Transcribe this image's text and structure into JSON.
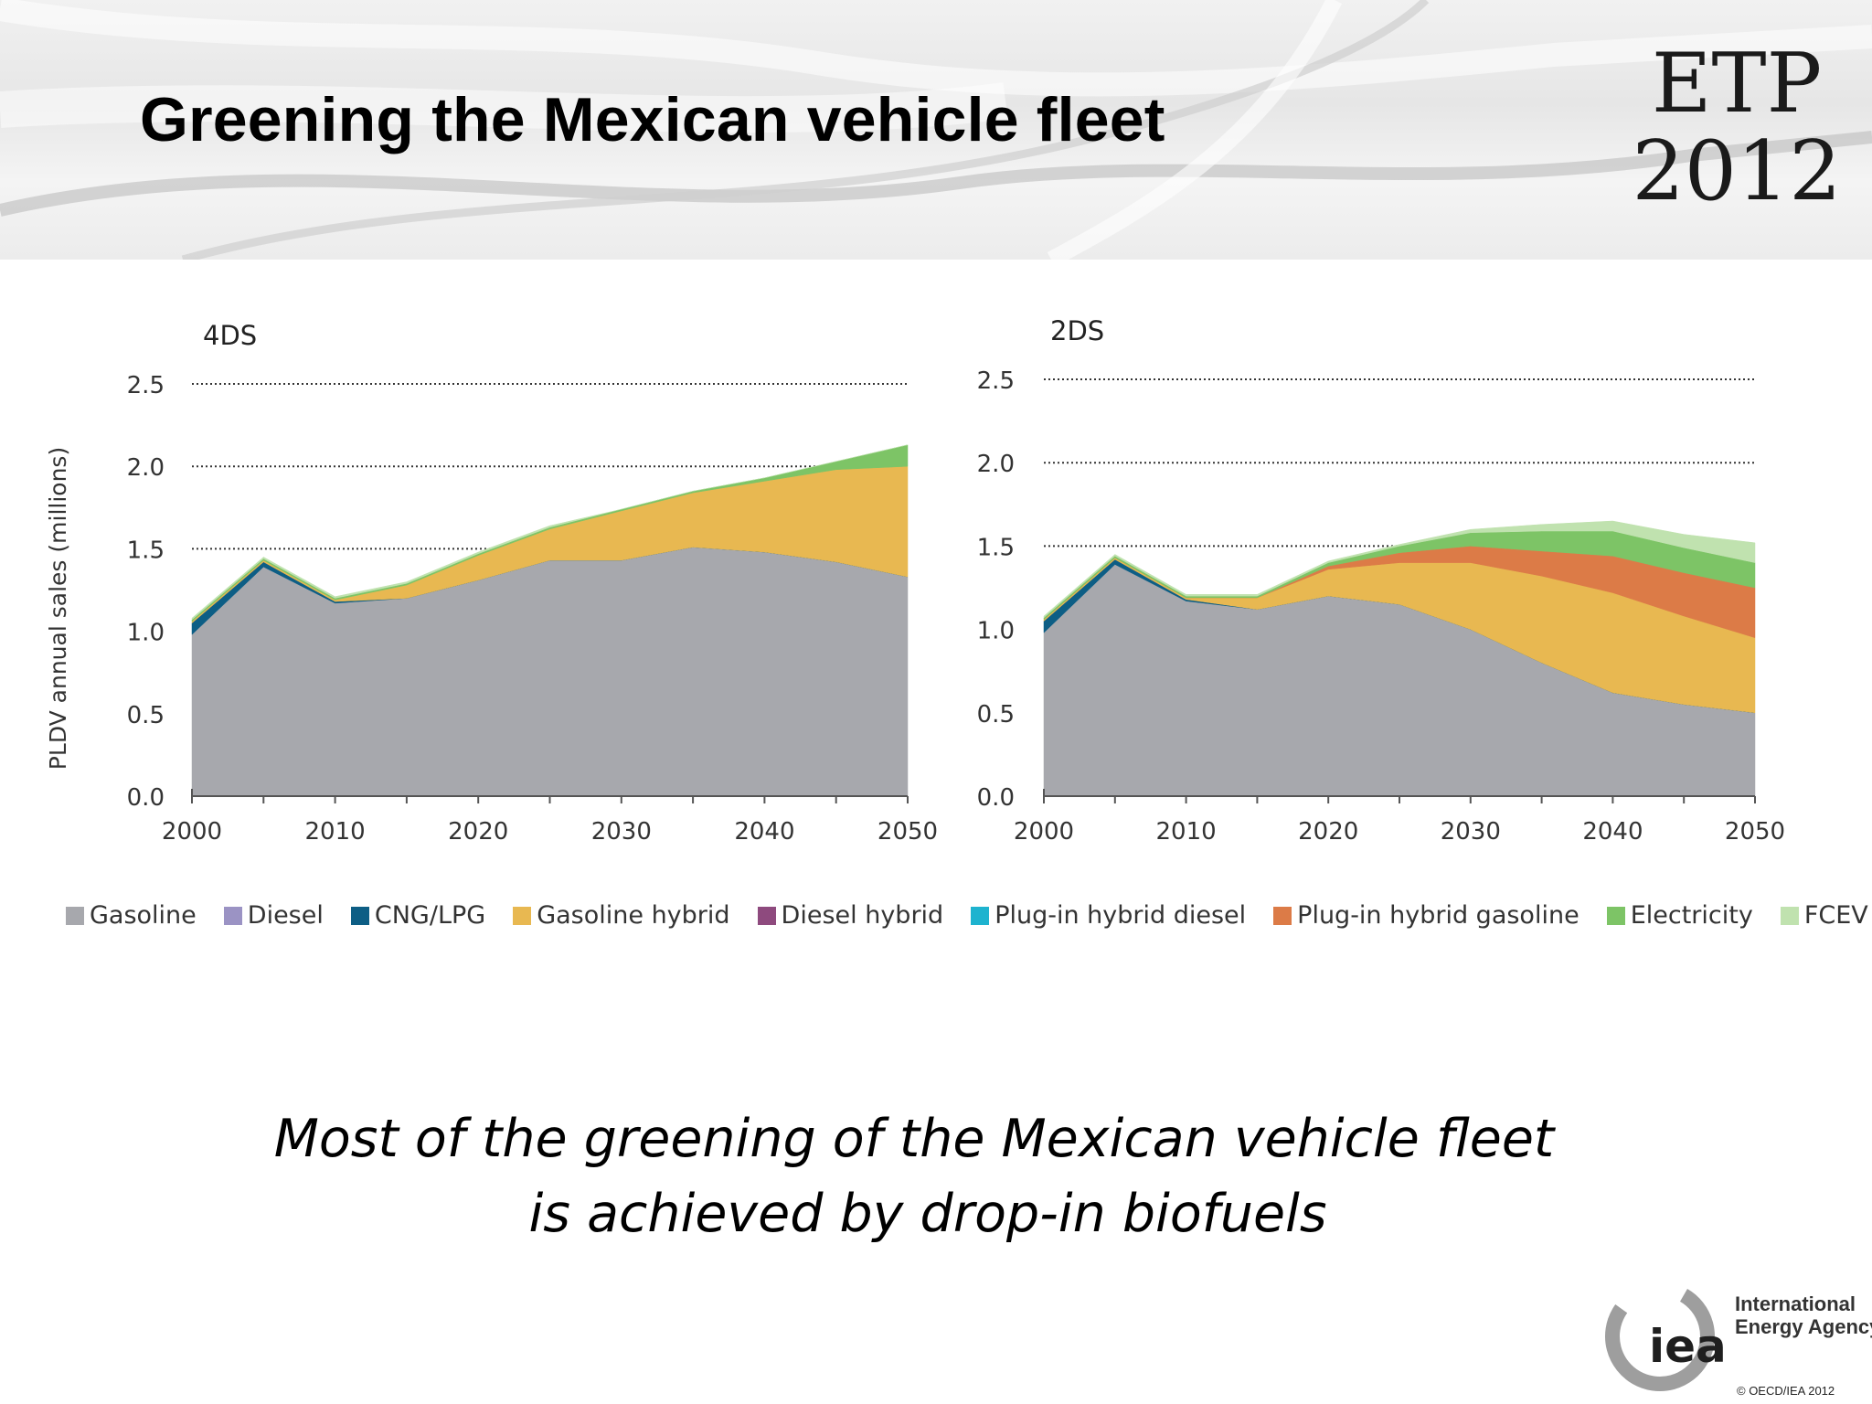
{
  "slide": {
    "title": "Greening the Mexican vehicle fleet",
    "brand_line1": "ETP",
    "brand_line2": "2012",
    "caption_line1": "Most of the greening of the Mexican vehicle fleet",
    "caption_line2": "is achieved by drop-in biofuels",
    "iea_logo_text": "iea",
    "iea_name_line1": "International",
    "iea_name_line2": "Energy Agency",
    "copyright": "© OECD/IEA 2012"
  },
  "colors": {
    "Gasoline": "#a7a8ad",
    "Diesel": "#9b93c4",
    "CNG/LPG": "#0d5e85",
    "Gasoline hybrid": "#e8b851",
    "Diesel hybrid": "#8e4a7e",
    "Plug-in hybrid diesel": "#1eb3cf",
    "Plug-in hybrid gasoline": "#dc7b47",
    "Electricity": "#7dc466",
    "FCEV": "#c0e2af"
  },
  "legend": [
    "Gasoline",
    "Diesel",
    "CNG/LPG",
    "Gasoline hybrid",
    "Diesel hybrid",
    "Plug-in hybrid diesel",
    "Plug-in hybrid gasoline",
    "Electricity",
    "FCEV"
  ],
  "chart_data": [
    {
      "type": "area",
      "stacked": true,
      "title": "4DS",
      "ylabel": "PLDV annual sales (millions)",
      "xlabel": "",
      "x": [
        2000,
        2005,
        2010,
        2015,
        2020,
        2025,
        2030,
        2035,
        2040,
        2045,
        2050
      ],
      "xticks": [
        2000,
        2010,
        2020,
        2030,
        2040,
        2050
      ],
      "yticks": [
        "0.0",
        "0.5",
        "1.0",
        "1.5",
        "2.0",
        "2.5"
      ],
      "ylim": [
        0,
        2.5
      ],
      "grid": "horizontal dotted",
      "series": [
        {
          "name": "Gasoline",
          "values": [
            0.98,
            1.39,
            1.17,
            1.2,
            1.31,
            1.43,
            1.43,
            1.51,
            1.48,
            1.42,
            1.33
          ]
        },
        {
          "name": "Diesel",
          "values": [
            0,
            0,
            0,
            0,
            0,
            0,
            0,
            0,
            0,
            0,
            0
          ]
        },
        {
          "name": "CNG/LPG",
          "values": [
            0.07,
            0.03,
            0.01,
            0,
            0,
            0,
            0,
            0,
            0,
            0,
            0
          ]
        },
        {
          "name": "Gasoline hybrid",
          "values": [
            0.01,
            0.01,
            0.01,
            0.08,
            0.15,
            0.19,
            0.3,
            0.33,
            0.43,
            0.56,
            0.67
          ]
        },
        {
          "name": "Diesel hybrid",
          "values": [
            0,
            0,
            0,
            0,
            0,
            0,
            0,
            0,
            0,
            0,
            0
          ]
        },
        {
          "name": "Plug-in hybrid diesel",
          "values": [
            0,
            0,
            0,
            0,
            0,
            0,
            0,
            0,
            0,
            0,
            0
          ]
        },
        {
          "name": "Plug-in hybrid gasoline",
          "values": [
            0,
            0,
            0,
            0,
            0,
            0,
            0,
            0,
            0,
            0,
            0
          ]
        },
        {
          "name": "Electricity",
          "values": [
            0.01,
            0.01,
            0.01,
            0.01,
            0.01,
            0.01,
            0.01,
            0.01,
            0.02,
            0.05,
            0.13
          ]
        },
        {
          "name": "FCEV",
          "values": [
            0.01,
            0.01,
            0.01,
            0.01,
            0.01,
            0.01,
            0,
            0,
            0,
            0,
            0
          ]
        }
      ]
    },
    {
      "type": "area",
      "stacked": true,
      "title": "2DS",
      "xlabel": "",
      "x": [
        2000,
        2005,
        2010,
        2015,
        2020,
        2025,
        2030,
        2035,
        2040,
        2045,
        2050
      ],
      "xticks": [
        2000,
        2010,
        2020,
        2030,
        2040,
        2050
      ],
      "yticks": [
        "0.0",
        "0.5",
        "1.0",
        "1.5",
        "2.0",
        "2.5"
      ],
      "ylim": [
        0,
        2.5
      ],
      "grid": "horizontal dotted",
      "series": [
        {
          "name": "Gasoline",
          "values": [
            0.98,
            1.39,
            1.17,
            1.12,
            1.2,
            1.15,
            1.0,
            0.8,
            0.62,
            0.55,
            0.5
          ]
        },
        {
          "name": "Diesel",
          "values": [
            0,
            0,
            0,
            0,
            0,
            0,
            0,
            0,
            0,
            0,
            0
          ]
        },
        {
          "name": "CNG/LPG",
          "values": [
            0.07,
            0.03,
            0.01,
            0,
            0,
            0,
            0,
            0,
            0,
            0,
            0
          ]
        },
        {
          "name": "Gasoline hybrid",
          "values": [
            0.01,
            0.01,
            0.01,
            0.07,
            0.16,
            0.25,
            0.4,
            0.52,
            0.6,
            0.53,
            0.45
          ]
        },
        {
          "name": "Diesel hybrid",
          "values": [
            0,
            0,
            0,
            0,
            0,
            0,
            0,
            0,
            0,
            0,
            0
          ]
        },
        {
          "name": "Plug-in hybrid diesel",
          "values": [
            0,
            0,
            0,
            0,
            0,
            0,
            0,
            0,
            0,
            0,
            0
          ]
        },
        {
          "name": "Plug-in hybrid gasoline",
          "values": [
            0,
            0,
            0,
            0,
            0.02,
            0.06,
            0.1,
            0.15,
            0.22,
            0.26,
            0.3
          ]
        },
        {
          "name": "Electricity",
          "values": [
            0.01,
            0.01,
            0.01,
            0.01,
            0.02,
            0.04,
            0.08,
            0.12,
            0.15,
            0.15,
            0.15
          ]
        },
        {
          "name": "FCEV",
          "values": [
            0.01,
            0.01,
            0.01,
            0.01,
            0.01,
            0.01,
            0.02,
            0.04,
            0.06,
            0.08,
            0.12
          ]
        }
      ]
    }
  ]
}
